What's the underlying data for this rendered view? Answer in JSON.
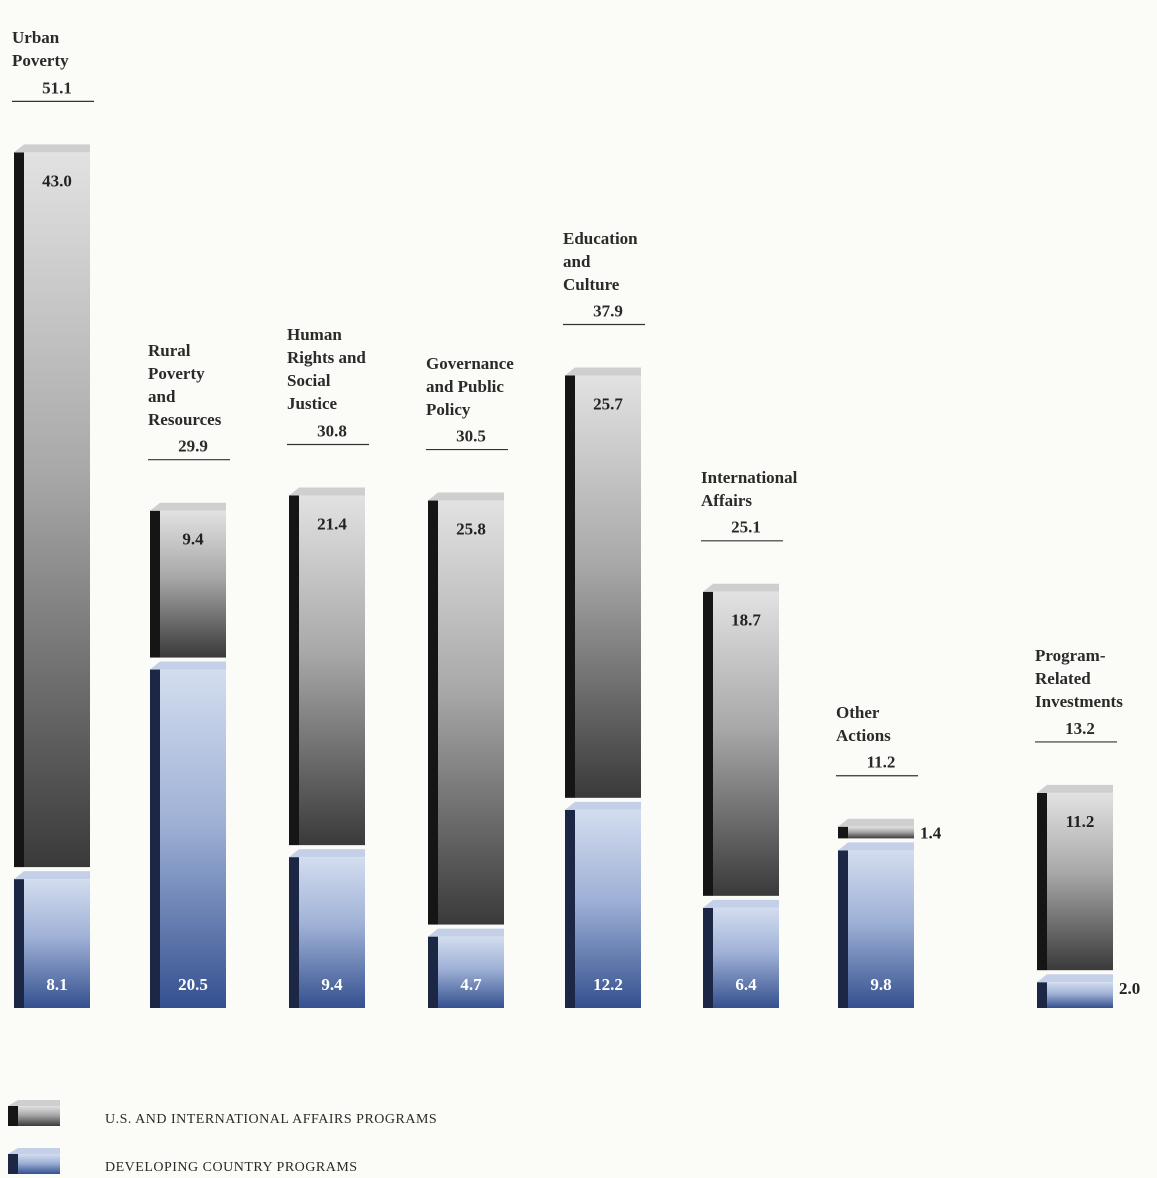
{
  "chart_data": {
    "type": "stacked_bar",
    "categories": [
      "Urban\nPoverty",
      "Rural\nPoverty\nand\nResources",
      "Human\nRights and\nSocial\nJustice",
      "Governance\nand Public\nPolicy",
      "Education\nand\nCulture",
      "International\nAffairs",
      "Other\nActions",
      "Program-\nRelated\nInvestments"
    ],
    "totals": [
      51.1,
      29.9,
      30.8,
      30.5,
      37.9,
      25.1,
      11.2,
      13.2
    ],
    "series": [
      {
        "name": "U.S. AND INTERNATIONAL AFFAIRS PROGRAMS",
        "color": "#3a3a3a",
        "values": [
          43.0,
          9.4,
          21.4,
          25.8,
          25.7,
          18.7,
          1.4,
          11.2
        ],
        "value_labels": [
          "43.0",
          "9.4",
          "21.4",
          "25.8",
          "25.7",
          "18.7",
          "1.4",
          "11.2"
        ]
      },
      {
        "name": "DEVELOPING COUNTRY PROGRAMS",
        "color": "#34508f",
        "values": [
          8.1,
          20.5,
          9.4,
          4.7,
          12.2,
          6.4,
          9.8,
          2.0
        ],
        "value_labels": [
          "8.1",
          "20.5",
          "9.4",
          "4.7",
          "12.2",
          "6.4",
          "9.8",
          "2.0"
        ]
      }
    ]
  }
}
